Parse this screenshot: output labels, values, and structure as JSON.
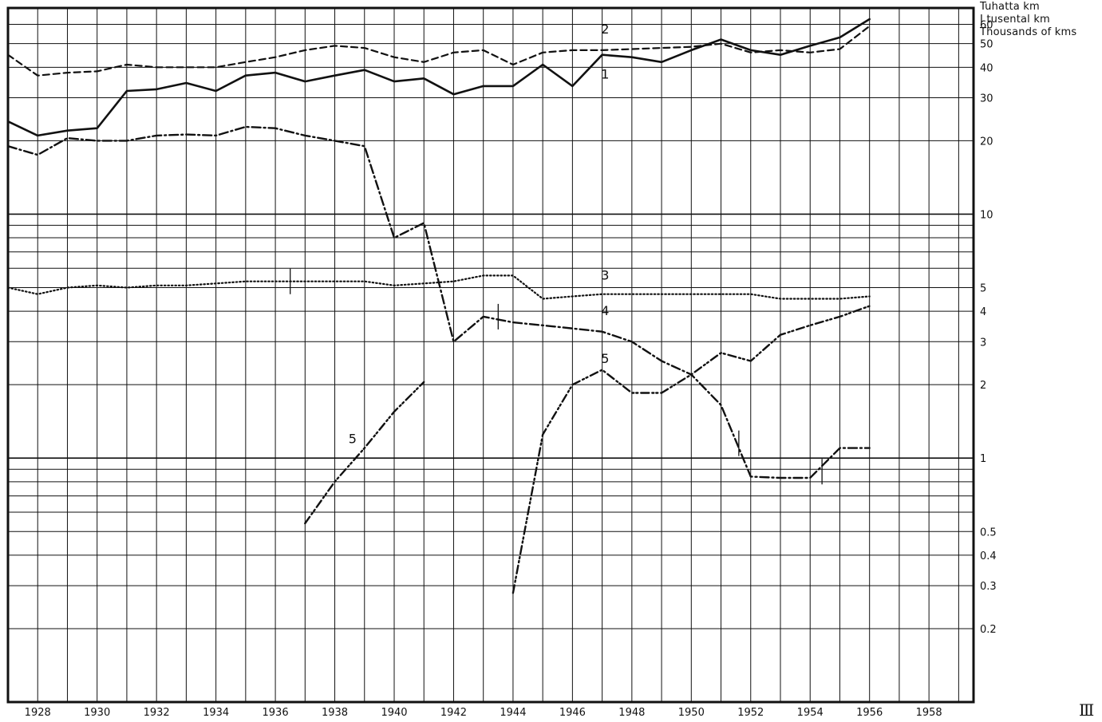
{
  "chart_data": {
    "type": "line",
    "y_scale": "log",
    "ylim": [
      0.1,
      70
    ],
    "xlim": [
      1927,
      1959.5
    ],
    "grid": true,
    "ylabel_lines": [
      "Tuhatta km",
      "I tusental km",
      "Thousands of kms"
    ],
    "x_tick_labels": [
      "1928",
      "1930",
      "1932",
      "1934",
      "1936",
      "1938",
      "1940",
      "1942",
      "1944",
      "1946",
      "1948",
      "1950",
      "1952",
      "1954",
      "1956",
      "1958"
    ],
    "x_tick_values": [
      1928,
      1930,
      1932,
      1934,
      1936,
      1938,
      1940,
      1942,
      1944,
      1946,
      1948,
      1950,
      1952,
      1954,
      1956,
      1958
    ],
    "y_tick_labels": [
      "60",
      "50",
      "40",
      "30",
      "20",
      "10",
      "5",
      "4",
      "3",
      "2",
      "1",
      "0.5",
      "0.4",
      "0.3",
      "0.2"
    ],
    "y_tick_values": [
      60,
      50,
      40,
      30,
      20,
      10,
      5,
      4,
      3,
      2,
      1,
      0.5,
      0.4,
      0.3,
      0.2
    ],
    "series": [
      {
        "name": "1",
        "style": "solid",
        "x": [
          1927,
          1928,
          1929,
          1930,
          1931,
          1932,
          1933,
          1934,
          1935,
          1936,
          1937,
          1938,
          1939,
          1940,
          1941,
          1942,
          1943,
          1944,
          1945,
          1946,
          1947,
          1948,
          1949,
          1950,
          1951,
          1952,
          1953,
          1954,
          1955,
          1956
        ],
        "y": [
          24,
          21,
          22,
          22.5,
          32,
          32.5,
          34.5,
          32,
          37,
          38,
          35,
          37,
          39,
          35,
          36,
          31,
          33.5,
          33.5,
          41,
          33.5,
          45,
          44,
          42,
          47,
          52,
          47,
          45,
          49,
          53,
          63
        ]
      },
      {
        "name": "2",
        "style": "dashed",
        "x": [
          1927,
          1928,
          1929,
          1930,
          1931,
          1932,
          1933,
          1934,
          1935,
          1936,
          1937,
          1938,
          1939,
          1940,
          1941,
          1942,
          1943,
          1944,
          1945,
          1946,
          1947,
          1948,
          1949,
          1950,
          1951,
          1952,
          1953,
          1954,
          1955,
          1956
        ],
        "y": [
          45,
          37,
          38,
          38.5,
          41,
          40,
          40,
          40,
          42,
          44,
          47,
          49,
          48,
          44,
          42,
          46,
          47,
          41,
          46,
          47,
          47,
          47.5,
          48,
          48.5,
          50,
          46,
          47,
          46,
          47.5,
          59
        ]
      },
      {
        "name": "3",
        "style": "dotted",
        "x": [
          1927,
          1928,
          1929,
          1930,
          1931,
          1932,
          1933,
          1934,
          1935,
          1936,
          1937,
          1938,
          1939,
          1940,
          1941,
          1942,
          1943,
          1944,
          1945,
          1946,
          1947,
          1948,
          1949,
          1950,
          1951,
          1952,
          1953,
          1954,
          1955,
          1956
        ],
        "y": [
          5.0,
          4.7,
          5.0,
          5.1,
          5.0,
          5.1,
          5.1,
          5.2,
          5.3,
          5.3,
          5.3,
          5.3,
          5.3,
          5.1,
          5.2,
          5.3,
          5.6,
          5.6,
          4.5,
          4.6,
          4.7,
          4.7,
          4.7,
          4.7,
          4.7,
          4.7,
          4.5,
          4.5,
          4.5,
          4.6
        ]
      },
      {
        "name": "4",
        "style": "dash-dot",
        "x": [
          1927,
          1928,
          1929,
          1930,
          1931,
          1932,
          1933,
          1934,
          1935,
          1936,
          1937,
          1938,
          1939,
          1940,
          1941,
          1942,
          1943,
          1944,
          1945,
          1946,
          1947,
          1948,
          1949,
          1950,
          1951,
          1952,
          1953,
          1954,
          1955,
          1956
        ],
        "y": [
          19,
          17.5,
          20.5,
          20,
          20,
          21,
          21.2,
          21,
          22.8,
          22.5,
          21,
          20,
          19,
          8.0,
          9.2,
          3.0,
          3.8,
          3.6,
          3.5,
          3.4,
          3.3,
          3.0,
          2.5,
          2.2,
          1.65,
          0.84,
          0.83,
          0.83,
          1.1,
          1.1
        ]
      },
      {
        "name": "5",
        "style": "dash-dot-dot",
        "segments": [
          {
            "x": [
              1937,
              1938,
              1939,
              1940,
              1941
            ],
            "y": [
              0.54,
              0.8,
              1.1,
              1.55,
              2.05
            ]
          },
          {
            "x": [
              1944,
              1945,
              1946,
              1947,
              1948,
              1949,
              1950,
              1951,
              1952,
              1953,
              1954,
              1955,
              1956
            ],
            "y": [
              0.28,
              1.25,
              2.0,
              2.3,
              1.85,
              1.85,
              2.2,
              2.7,
              2.5,
              3.2,
              3.5,
              3.8,
              4.2
            ]
          }
        ]
      }
    ],
    "series_labels": [
      {
        "text": "2",
        "x": 1947.1,
        "y": 55
      },
      {
        "text": "1",
        "x": 1947.1,
        "y": 36
      },
      {
        "text": "3",
        "x": 1947.1,
        "y": 5.4
      },
      {
        "text": "4",
        "x": 1947.1,
        "y": 3.85
      },
      {
        "text": "5",
        "x": 1947.1,
        "y": 2.45
      },
      {
        "text": "5",
        "x": 1938.6,
        "y": 1.15
      }
    ],
    "break_marks": [
      {
        "x": 1936.5,
        "y": 5.3
      },
      {
        "x": 1943.5,
        "y": 3.8
      },
      {
        "x": 1951.6,
        "y": 1.15
      },
      {
        "x": 1954.4,
        "y": 0.88
      }
    ],
    "plate_number": "Ⅲ",
    "colors": {
      "ink": "#111111",
      "background": "#ffffff"
    }
  }
}
